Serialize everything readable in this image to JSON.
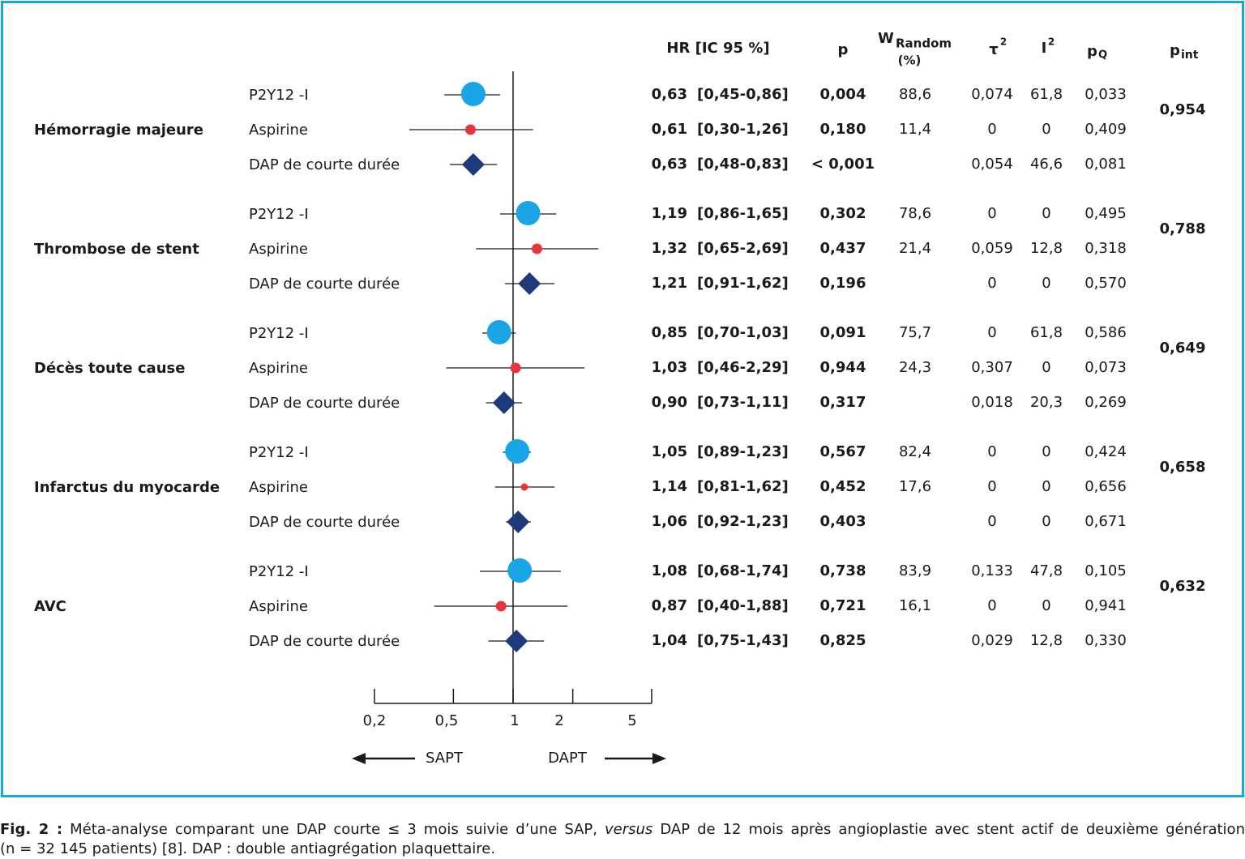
{
  "chart_data": {
    "type": "forest",
    "x_scale": "log",
    "xlim": [
      0.2,
      5
    ],
    "x_ticks": [
      "0,2",
      "0,5",
      "1",
      "2",
      "5"
    ],
    "x_tick_values": [
      0.2,
      0.5,
      1,
      2,
      5
    ],
    "arrow_left_label": "SAPT",
    "arrow_right_label": "DAPT",
    "columns": {
      "hr": "HR  [IC 95 %]",
      "p": "p",
      "w_main": "W",
      "w_sub": "Random",
      "w_unit": "(%)",
      "tau_main": "τ",
      "tau_sup": "2",
      "i_main": "I",
      "i_sup": "2",
      "pq_main": "p",
      "pq_sub": "Q",
      "pint_main": "p",
      "pint_sub": "int"
    },
    "colors": {
      "p2y12": "#1aa5e6",
      "aspirine": "#e8343c",
      "dap": "#1f3a7a",
      "frame": "#1aa5dc"
    },
    "groups": [
      {
        "name": "Hémorragie majeure",
        "p_int": "0,954",
        "rows": [
          {
            "label": "P2Y12 -I",
            "kind": "p2y12",
            "hr": 0.63,
            "lo": 0.45,
            "hi": 0.86,
            "hr_text": "0,63",
            "ci_text": "[0,45-0,86]",
            "p": "0,004",
            "w": "88,6",
            "tau2": "0,074",
            "i2": "61,8",
            "pq": "0,033"
          },
          {
            "label": "Aspirine",
            "kind": "aspirine",
            "hr": 0.61,
            "lo": 0.3,
            "hi": 1.26,
            "hr_text": "0,61",
            "ci_text": "[0,30-1,26]",
            "p": "0,180",
            "w": "11,4",
            "tau2": "0",
            "i2": "0",
            "pq": "0,409"
          },
          {
            "label": "DAP de courte durée",
            "kind": "dap",
            "hr": 0.63,
            "lo": 0.48,
            "hi": 0.83,
            "hr_text": "0,63",
            "ci_text": "[0,48-0,83]",
            "p": "< 0,001",
            "w": "",
            "tau2": "0,054",
            "i2": "46,6",
            "pq": "0,081"
          }
        ]
      },
      {
        "name": "Thrombose de stent",
        "p_int": "0,788",
        "rows": [
          {
            "label": "P2Y12 -I",
            "kind": "p2y12",
            "hr": 1.19,
            "lo": 0.86,
            "hi": 1.65,
            "hr_text": "1,19",
            "ci_text": "[0,86-1,65]",
            "p": "0,302",
            "w": "78,6",
            "tau2": "0",
            "i2": "0",
            "pq": "0,495"
          },
          {
            "label": "Aspirine",
            "kind": "aspirine",
            "hr": 1.32,
            "lo": 0.65,
            "hi": 2.69,
            "hr_text": "1,32",
            "ci_text": "[0,65-2,69]",
            "p": "0,437",
            "w": "21,4",
            "tau2": "0,059",
            "i2": "12,8",
            "pq": "0,318"
          },
          {
            "label": "DAP de courte durée",
            "kind": "dap",
            "hr": 1.21,
            "lo": 0.91,
            "hi": 1.62,
            "hr_text": "1,21",
            "ci_text": "[0,91-1,62]",
            "p": "0,196",
            "w": "",
            "tau2": "0",
            "i2": "0",
            "pq": "0,570"
          }
        ]
      },
      {
        "name": "Décès toute cause",
        "p_int": "0,649",
        "rows": [
          {
            "label": "P2Y12 -I",
            "kind": "p2y12",
            "hr": 0.85,
            "lo": 0.7,
            "hi": 1.03,
            "hr_text": "0,85",
            "ci_text": "[0,70-1,03]",
            "p": "0,091",
            "w": "75,7",
            "tau2": "0",
            "i2": "61,8",
            "pq": "0,586"
          },
          {
            "label": "Aspirine",
            "kind": "aspirine",
            "hr": 1.03,
            "lo": 0.46,
            "hi": 2.29,
            "hr_text": "1,03",
            "ci_text": "[0,46-2,29]",
            "p": "0,944",
            "w": "24,3",
            "tau2": "0,307",
            "i2": "0",
            "pq": "0,073"
          },
          {
            "label": "DAP de courte durée",
            "kind": "dap",
            "hr": 0.9,
            "lo": 0.73,
            "hi": 1.11,
            "hr_text": "0,90",
            "ci_text": "[0,73-1,11]",
            "p": "0,317",
            "w": "",
            "tau2": "0,018",
            "i2": "20,3",
            "pq": "0,269"
          }
        ]
      },
      {
        "name": "Infarctus du myocarde",
        "p_int": "0,658",
        "rows": [
          {
            "label": "P2Y12 -I",
            "kind": "p2y12",
            "hr": 1.05,
            "lo": 0.89,
            "hi": 1.23,
            "hr_text": "1,05",
            "ci_text": "[0,89-1,23]",
            "p": "0,567",
            "w": "82,4",
            "tau2": "0",
            "i2": "0",
            "pq": "0,424"
          },
          {
            "label": "Aspirine",
            "kind": "aspirine",
            "hr": 1.14,
            "lo": 0.81,
            "hi": 1.62,
            "hr_text": "1,14",
            "ci_text": "[0,81-1,62]",
            "p": "0,452",
            "w": "17,6",
            "tau2": "0",
            "i2": "0",
            "pq": "0,656"
          },
          {
            "label": "DAP de courte durée",
            "kind": "dap",
            "hr": 1.06,
            "lo": 0.92,
            "hi": 1.23,
            "hr_text": "1,06",
            "ci_text": "[0,92-1,23]",
            "p": "0,403",
            "w": "",
            "tau2": "0",
            "i2": "0",
            "pq": "0,671"
          }
        ]
      },
      {
        "name": "AVC",
        "p_int": "0,632",
        "rows": [
          {
            "label": "P2Y12 -I",
            "kind": "p2y12",
            "hr": 1.08,
            "lo": 0.68,
            "hi": 1.74,
            "hr_text": "1,08",
            "ci_text": "[0,68-1,74]",
            "p": "0,738",
            "w": "83,9",
            "tau2": "0,133",
            "i2": "47,8",
            "pq": "0,105"
          },
          {
            "label": "Aspirine",
            "kind": "aspirine",
            "hr": 0.87,
            "lo": 0.4,
            "hi": 1.88,
            "hr_text": "0,87",
            "ci_text": "[0,40-1,88]",
            "p": "0,721",
            "w": "16,1",
            "tau2": "0",
            "i2": "0",
            "pq": "0,941"
          },
          {
            "label": "DAP de courte durée",
            "kind": "dap",
            "hr": 1.04,
            "lo": 0.75,
            "hi": 1.43,
            "hr_text": "1,04",
            "ci_text": "[0,75-1,43]",
            "p": "0,825",
            "w": "",
            "tau2": "0,029",
            "i2": "12,8",
            "pq": "0,330"
          }
        ]
      }
    ]
  },
  "caption": {
    "prefix": "Fig. 2 :",
    "line1_a": " Méta-analyse comparant une DAP courte ≤ 3 mois suivie d’une SAP, ",
    "line1_em": "versus",
    "line1_b": " DAP de 12 mois après angioplastie avec stent actif de deuxième génération",
    "line2": "(n = 32 145 patients) [8]. DAP : double antiagrégation plaquettaire."
  }
}
